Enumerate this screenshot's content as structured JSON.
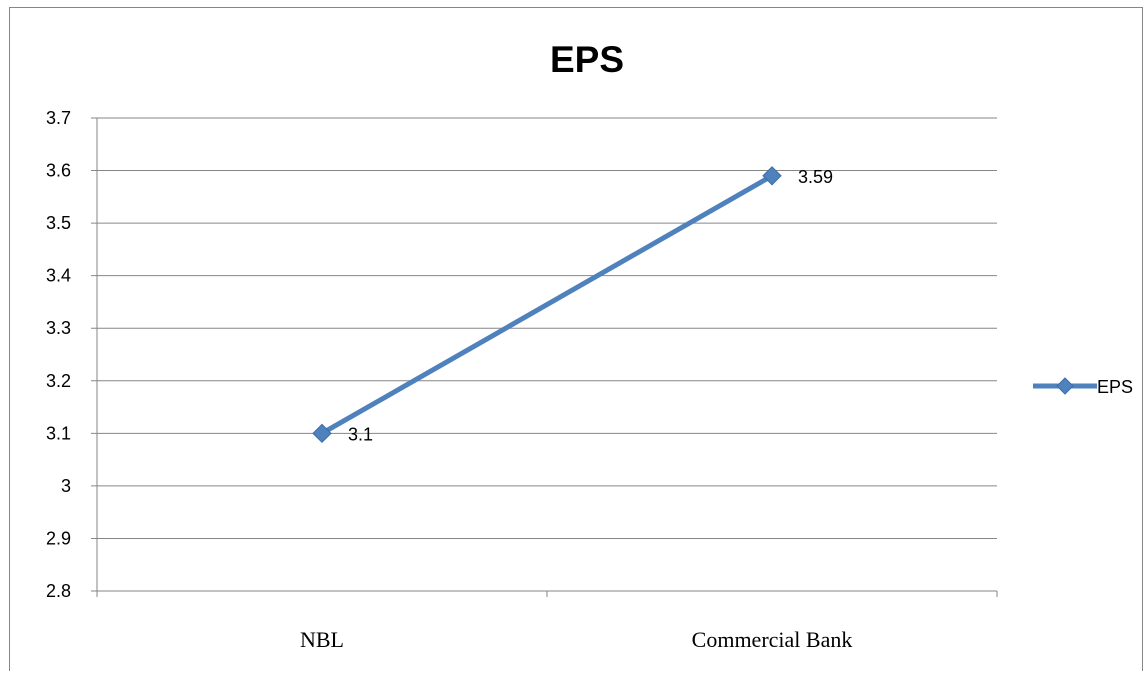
{
  "chart_data": {
    "type": "line",
    "title": "EPS",
    "categories": [
      "NBL",
      "Commercial Bank"
    ],
    "series": [
      {
        "name": "EPS",
        "values": [
          3.1,
          3.59
        ],
        "data_labels": [
          "3.1",
          "3.59"
        ],
        "color": "#4F81BD"
      }
    ],
    "y_ticks": [
      "2.8",
      "2.9",
      "3",
      "3.1",
      "3.2",
      "3.3",
      "3.4",
      "3.5",
      "3.6",
      "3.7"
    ],
    "ylim": [
      2.8,
      3.7
    ],
    "xlabel": "",
    "ylabel": "",
    "grid": true,
    "legend_position": "right",
    "colors": {
      "gridline": "#868686",
      "series": "#4F81BD",
      "marker_border": "#3A6EA8"
    }
  }
}
